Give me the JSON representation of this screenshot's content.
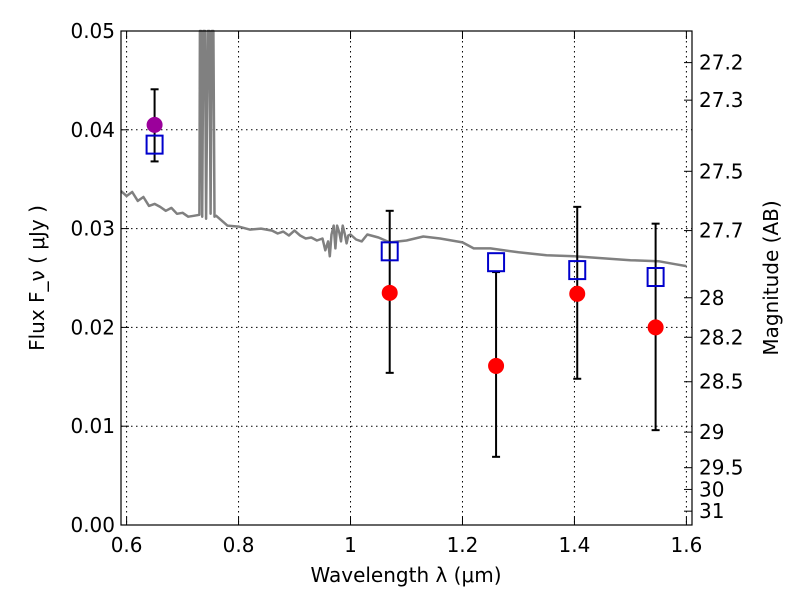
{
  "chart_data": {
    "type": "scatter",
    "xlabel": "Wavelength  λ (μm)",
    "ylabel": "Flux  F_ν  ( μJy )",
    "y2label": "Magnitude (AB)",
    "xlim": [
      0.59,
      1.61
    ],
    "ylim": [
      0.0,
      0.05
    ],
    "grid": true,
    "colors": {
      "model": "#808080",
      "observed": "#ff0000",
      "observed_optical": "#9b009b",
      "synthetic": "#0000cc",
      "errorbar": "#000000"
    },
    "x_ticks": [
      0.6,
      0.8,
      1.0,
      1.2,
      1.4,
      1.6
    ],
    "x_tick_labels": [
      "0.6",
      "0.8",
      "1",
      "1.2",
      "1.4",
      "1.6"
    ],
    "y_ticks": [
      0.0,
      0.01,
      0.02,
      0.03,
      0.04,
      0.05
    ],
    "y_tick_labels": [
      "0.00",
      "0.01",
      "0.02",
      "0.03",
      "0.04",
      "0.05"
    ],
    "y2_ticks": [
      {
        "label": "27.2",
        "flux": 0.0468
      },
      {
        "label": "27.3",
        "flux": 0.043
      },
      {
        "label": "27.5",
        "flux": 0.0358
      },
      {
        "label": "27.7",
        "flux": 0.0298
      },
      {
        "label": "28",
        "flux": 0.023
      },
      {
        "label": "28.2",
        "flux": 0.019
      },
      {
        "label": "28.5",
        "flux": 0.0145
      },
      {
        "label": "29",
        "flux": 0.0094
      },
      {
        "label": "29.5",
        "flux": 0.0058
      },
      {
        "label": "30",
        "flux": 0.0036
      },
      {
        "label": "31",
        "flux": 0.0014
      }
    ],
    "series": [
      {
        "kind": "model_sed",
        "x": [
          0.59,
          0.6,
          0.61,
          0.62,
          0.63,
          0.64,
          0.65,
          0.66,
          0.67,
          0.68,
          0.69,
          0.7,
          0.71,
          0.72,
          0.73,
          0.731,
          0.733,
          0.735,
          0.737,
          0.74,
          0.742,
          0.745,
          0.748,
          0.75,
          0.752,
          0.755,
          0.757,
          0.76,
          0.78,
          0.8,
          0.82,
          0.84,
          0.86,
          0.87,
          0.88,
          0.89,
          0.9,
          0.91,
          0.92,
          0.93,
          0.94,
          0.95,
          0.955,
          0.96,
          0.963,
          0.966,
          0.97,
          0.973,
          0.976,
          0.98,
          0.983,
          0.986,
          0.99,
          0.993,
          0.996,
          1.0,
          1.01,
          1.02,
          1.03,
          1.05,
          1.07,
          1.1,
          1.13,
          1.16,
          1.2,
          1.22,
          1.25,
          1.3,
          1.35,
          1.4,
          1.45,
          1.5,
          1.55,
          1.58,
          1.6
        ],
        "y": [
          0.0338,
          0.0333,
          0.0337,
          0.0328,
          0.0332,
          0.0323,
          0.0325,
          0.0322,
          0.0318,
          0.0321,
          0.0315,
          0.0316,
          0.0312,
          0.0313,
          0.0314,
          0.05,
          0.05,
          0.0312,
          0.05,
          0.05,
          0.031,
          0.05,
          0.05,
          0.0315,
          0.05,
          0.05,
          0.0312,
          0.0313,
          0.0303,
          0.0302,
          0.0299,
          0.03,
          0.0298,
          0.0295,
          0.0297,
          0.0293,
          0.0298,
          0.0293,
          0.029,
          0.0291,
          0.0288,
          0.029,
          0.0278,
          0.0287,
          0.0272,
          0.0294,
          0.0303,
          0.028,
          0.0303,
          0.0296,
          0.0287,
          0.0303,
          0.0294,
          0.0285,
          0.0293,
          0.0294,
          0.0289,
          0.0287,
          0.0294,
          0.0291,
          0.0286,
          0.0288,
          0.0292,
          0.029,
          0.0286,
          0.028,
          0.028,
          0.0276,
          0.0273,
          0.0272,
          0.027,
          0.0268,
          0.0267,
          0.0264,
          0.0262
        ]
      },
      {
        "kind": "observed",
        "x": [
          0.65,
          1.07,
          1.26,
          1.405,
          1.545
        ],
        "y": [
          0.0405,
          0.0235,
          0.0161,
          0.0234,
          0.02
        ],
        "yerr_low": [
          0.0368,
          0.0154,
          0.0069,
          0.0148,
          0.0096
        ],
        "yerr_high": [
          0.0441,
          0.0318,
          0.0256,
          0.0322,
          0.0305
        ]
      },
      {
        "kind": "synthetic",
        "x": [
          0.65,
          1.07,
          1.26,
          1.405,
          1.545
        ],
        "y": [
          0.0385,
          0.0277,
          0.0266,
          0.0258,
          0.0251
        ]
      }
    ]
  }
}
